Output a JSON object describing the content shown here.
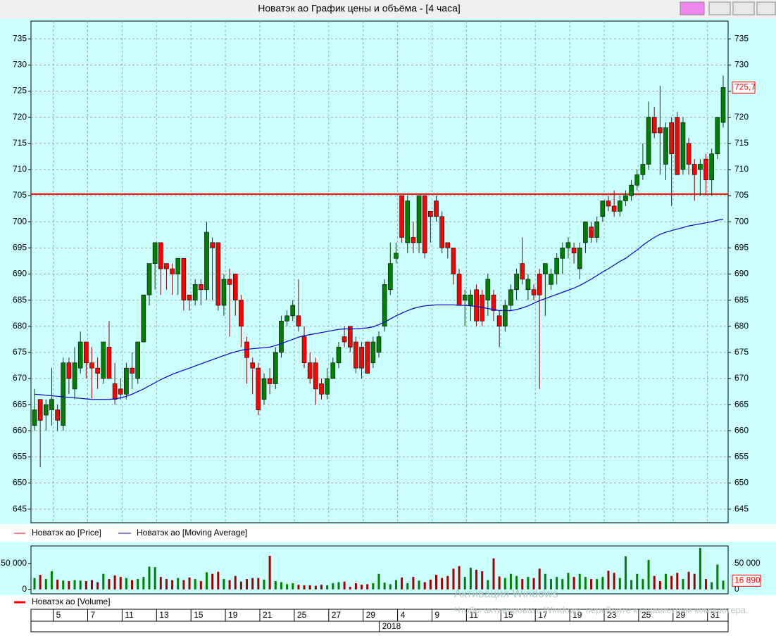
{
  "window_title": "Новатэк ао График цены и объёма - [4 часа]",
  "watermark": [
    "Активация Windows",
    "Чтобы активировать Windows, перейдите к параметрам компьютера."
  ],
  "chart_data": {
    "type": "candlestick",
    "price_name": "Новатэк ао [Price]",
    "up_color": "#008000",
    "down_color": "#ff0000",
    "grid": true,
    "ylim": [
      642.4,
      738.4
    ],
    "yticks": [
      645,
      650,
      655,
      660,
      665,
      670,
      675,
      680,
      685,
      690,
      695,
      700,
      705,
      710,
      715,
      720,
      725,
      730,
      735
    ],
    "hline": 705.3,
    "last_price_label": "725,7",
    "year": "2018",
    "categories": [
      null,
      null,
      null,
      null,
      "5",
      null,
      null,
      null,
      null,
      null,
      "7",
      null,
      null,
      null,
      null,
      null,
      "11",
      null,
      null,
      null,
      null,
      null,
      "13",
      null,
      null,
      null,
      null,
      null,
      "15",
      null,
      null,
      null,
      null,
      null,
      "19",
      null,
      null,
      null,
      null,
      null,
      "21",
      null,
      null,
      null,
      null,
      null,
      "25",
      null,
      null,
      null,
      null,
      null,
      "27",
      null,
      null,
      null,
      null,
      null,
      "29",
      null,
      null,
      null,
      null,
      null,
      "4",
      null,
      null,
      null,
      null,
      null,
      "9",
      null,
      null,
      null,
      null,
      null,
      "11",
      null,
      null,
      null,
      null,
      null,
      "15",
      null,
      null,
      null,
      null,
      null,
      "17",
      null,
      null,
      null,
      null,
      null,
      "19",
      null,
      null,
      null,
      null,
      null,
      "23",
      null,
      null,
      null,
      null,
      null,
      "25",
      null,
      null,
      null,
      null,
      null,
      "29",
      null,
      null,
      null,
      null,
      null,
      "31",
      null,
      null
    ],
    "candles": [
      [
        661,
        668,
        660,
        664
      ],
      [
        666,
        666,
        653,
        662
      ],
      [
        663,
        666,
        660,
        665
      ],
      [
        664,
        672,
        661,
        666
      ],
      [
        664,
        665,
        660,
        662
      ],
      [
        661,
        674,
        660,
        673
      ],
      [
        673,
        674,
        667,
        670
      ],
      [
        668,
        676,
        666,
        673
      ],
      [
        672,
        679,
        671,
        677
      ],
      [
        677,
        677,
        670,
        673
      ],
      [
        673,
        676,
        666,
        672
      ],
      [
        672,
        674,
        668,
        671
      ],
      [
        670,
        677,
        669,
        677
      ],
      [
        676,
        681,
        670,
        670
      ],
      [
        669,
        673,
        665,
        666
      ],
      [
        668,
        670,
        666,
        667
      ],
      [
        667,
        673,
        666,
        672
      ],
      [
        672,
        675,
        668,
        671
      ],
      [
        670,
        677,
        669,
        677
      ],
      [
        677,
        686,
        677,
        686
      ],
      [
        686,
        692,
        684,
        692
      ],
      [
        692,
        696,
        687,
        696
      ],
      [
        696,
        696,
        686,
        691
      ],
      [
        692,
        692,
        687,
        691
      ],
      [
        691,
        692,
        686,
        690
      ],
      [
        690,
        693,
        686,
        693
      ],
      [
        693,
        693,
        683,
        685
      ],
      [
        686,
        686,
        683,
        685
      ],
      [
        685,
        689,
        684,
        688
      ],
      [
        688,
        689,
        684,
        687
      ],
      [
        687,
        700,
        685,
        698
      ],
      [
        696,
        697,
        685,
        695
      ],
      [
        696,
        696,
        683,
        684
      ],
      [
        684,
        690,
        682,
        689
      ],
      [
        689,
        691,
        678,
        688
      ],
      [
        690,
        690,
        682,
        685
      ],
      [
        685,
        686,
        676,
        680
      ],
      [
        677,
        678,
        669,
        674
      ],
      [
        673,
        674,
        667,
        672
      ],
      [
        672,
        673,
        663,
        664
      ],
      [
        666,
        671,
        665,
        670
      ],
      [
        670,
        672,
        667,
        669
      ],
      [
        669,
        676,
        668,
        675
      ],
      [
        675,
        682,
        674,
        681
      ],
      [
        681,
        683,
        680,
        682
      ],
      [
        682,
        685,
        681,
        684
      ],
      [
        682,
        689,
        679,
        680
      ],
      [
        678,
        680,
        672,
        673
      ],
      [
        673,
        675,
        669,
        670
      ],
      [
        673,
        674,
        665,
        668
      ],
      [
        669,
        670,
        666,
        667
      ],
      [
        667,
        672,
        666,
        670
      ],
      [
        670,
        674,
        670,
        673
      ],
      [
        673,
        677,
        672,
        676
      ],
      [
        678,
        680,
        676,
        677
      ],
      [
        680,
        680,
        675,
        676
      ],
      [
        677,
        678,
        671,
        672
      ],
      [
        676,
        677,
        670,
        672
      ],
      [
        677,
        677,
        671,
        671
      ],
      [
        673,
        678,
        672,
        677
      ],
      [
        675,
        679,
        674,
        678
      ],
      [
        680,
        689,
        679,
        688
      ],
      [
        687,
        696,
        686,
        692
      ],
      [
        693,
        696,
        692,
        694
      ],
      [
        705,
        705,
        696,
        697
      ],
      [
        696,
        705,
        694,
        704
      ],
      [
        697,
        700,
        694,
        696
      ],
      [
        696,
        705,
        694,
        705
      ],
      [
        705,
        705,
        693,
        694
      ],
      [
        702,
        702,
        696,
        701
      ],
      [
        704,
        705,
        700,
        701
      ],
      [
        701,
        702,
        694,
        695
      ],
      [
        696,
        696,
        693,
        695
      ],
      [
        695,
        695,
        688,
        690
      ],
      [
        690,
        691,
        684,
        684
      ],
      [
        685,
        687,
        680,
        686
      ],
      [
        684,
        687,
        681,
        686
      ],
      [
        687,
        688,
        680,
        681
      ],
      [
        686,
        687,
        680,
        681
      ],
      [
        685,
        690,
        682,
        689
      ],
      [
        686,
        687,
        681,
        683
      ],
      [
        682,
        683,
        676,
        680
      ],
      [
        680,
        685,
        679,
        684
      ],
      [
        684,
        688,
        683,
        687
      ],
      [
        687,
        691,
        685,
        690
      ],
      [
        692,
        697,
        688,
        689
      ],
      [
        687,
        690,
        685,
        689
      ],
      [
        687,
        688,
        685,
        686
      ],
      [
        690,
        691,
        668,
        686
      ],
      [
        690,
        692,
        682,
        692
      ],
      [
        688,
        691,
        687,
        690
      ],
      [
        690,
        694,
        688,
        693
      ],
      [
        693,
        696,
        690,
        695
      ],
      [
        695,
        697,
        693,
        696
      ],
      [
        695,
        696,
        692,
        694
      ],
      [
        691,
        696,
        689,
        695
      ],
      [
        696,
        700,
        694,
        700
      ],
      [
        699,
        700,
        696,
        697
      ],
      [
        697,
        701,
        696,
        700
      ],
      [
        701,
        704,
        700,
        704
      ],
      [
        704,
        705,
        702,
        703
      ],
      [
        703,
        706,
        701,
        702
      ],
      [
        702,
        705,
        701,
        704
      ],
      [
        704,
        706,
        703,
        705
      ],
      [
        705,
        708,
        704,
        707
      ],
      [
        707,
        710,
        706,
        709
      ],
      [
        709,
        715,
        708,
        711
      ],
      [
        711,
        723,
        710,
        720
      ],
      [
        720,
        722,
        716,
        717
      ],
      [
        718,
        726,
        709,
        717
      ],
      [
        711,
        719,
        708,
        718
      ],
      [
        719,
        720,
        703,
        713
      ],
      [
        720,
        721,
        709,
        709
      ],
      [
        710,
        720,
        709,
        719
      ],
      [
        715,
        716,
        709,
        711
      ],
      [
        711,
        712,
        704,
        709
      ],
      [
        710,
        712,
        705,
        711
      ],
      [
        712,
        713,
        705,
        708
      ],
      [
        708,
        714,
        705,
        713
      ],
      [
        713,
        720,
        712,
        720
      ],
      [
        719,
        728,
        718,
        725.7
      ]
    ],
    "ma": {
      "name": "Новатэк ао [Moving Average]",
      "color": "#0000c0",
      "values": [
        667,
        666.9,
        666.8,
        666.7,
        666.6,
        666.5,
        666.4,
        666.3,
        666.2,
        666.1,
        666,
        666,
        666,
        666,
        666.1,
        666.3,
        666.6,
        667,
        667.5,
        668,
        668.6,
        669.2,
        669.8,
        670.3,
        670.8,
        671.2,
        671.6,
        672,
        672.4,
        672.8,
        673.2,
        673.6,
        674,
        674.4,
        674.8,
        675.1,
        675.4,
        675.6,
        675.7,
        675.8,
        675.9,
        676,
        676.3,
        676.7,
        677.1,
        677.5,
        677.9,
        678.2,
        678.4,
        678.6,
        678.8,
        679,
        679.2,
        679.4,
        679.5,
        679.5,
        679.5,
        679.6,
        679.7,
        679.9,
        680.3,
        680.8,
        681.4,
        682,
        682.5,
        683,
        683.4,
        683.7,
        683.9,
        684,
        684.1,
        684.1,
        684.1,
        684.1,
        684,
        684,
        683.9,
        683.8,
        683.6,
        683.4,
        683.2,
        683,
        683,
        683,
        683.2,
        683.5,
        683.9,
        684.4,
        684.9,
        685.3,
        685.7,
        686.1,
        686.5,
        686.9,
        687.3,
        687.8,
        688.4,
        689,
        689.7,
        690.4,
        691,
        691.7,
        692.4,
        693,
        693.8,
        694.6,
        695.5,
        696.3,
        697,
        697.6,
        698,
        698.3,
        698.6,
        698.9,
        699.2,
        699.4,
        699.6,
        699.8,
        700,
        700.3,
        700.5
      ]
    },
    "volume": {
      "name": "Новатэк ао [Volume]",
      "ylim": [
        -8500,
        84000
      ],
      "yticks": [
        0,
        {
          "value": 50000,
          "label": "50 000"
        }
      ],
      "last_label": "16 890",
      "values": [
        22000,
        28000,
        20000,
        35000,
        19000,
        17000,
        16000,
        18000,
        17000,
        16000,
        18000,
        14000,
        30000,
        20000,
        27000,
        24000,
        22000,
        18000,
        20000,
        24000,
        44000,
        43000,
        24000,
        20000,
        18000,
        22000,
        18000,
        23000,
        20000,
        16000,
        33000,
        30000,
        34000,
        20000,
        18000,
        26000,
        15000,
        20000,
        22000,
        22000,
        19000,
        65000,
        16000,
        14000,
        10000,
        12000,
        9000,
        8000,
        8000,
        7000,
        9000,
        8000,
        12000,
        14000,
        15000,
        5000,
        12000,
        9000,
        10000,
        12000,
        30000,
        13000,
        10000,
        18000,
        23000,
        12000,
        24000,
        17000,
        14000,
        19000,
        28000,
        22000,
        26000,
        40000,
        45000,
        24000,
        42000,
        38000,
        35000,
        18000,
        60000,
        25000,
        22000,
        30000,
        26000,
        20000,
        24000,
        22000,
        40000,
        30000,
        20000,
        24000,
        20000,
        32000,
        24000,
        30000,
        24000,
        20000,
        20000,
        24000,
        36000,
        32000,
        22000,
        64000,
        18000,
        30000,
        20000,
        57000,
        26000,
        16000,
        30000,
        26000,
        32000,
        20000,
        34000,
        30000,
        80000,
        20000,
        14000,
        48000,
        16890
      ]
    }
  }
}
